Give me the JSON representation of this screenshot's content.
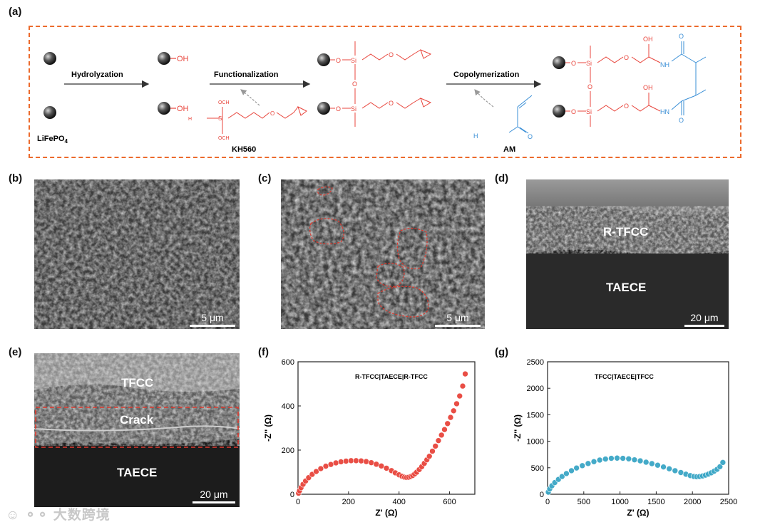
{
  "panels": {
    "a": "(a)",
    "b": "(b)",
    "c": "(c)",
    "d": "(d)",
    "e": "(e)",
    "f": "(f)",
    "g": "(g)"
  },
  "scheme": {
    "lfp_label": "LiFePO",
    "lfp_sub": "4",
    "step1": "Hydrolyzation",
    "step2": "Functionalization",
    "step3": "Copolymerization",
    "oh": "OH",
    "kh560": "KH560",
    "am": "AM",
    "och3": "OCH",
    "h3co": "H",
    "nh2": "H",
    "si": "Si",
    "o": "O",
    "nh": "NH",
    "hn": "HN"
  },
  "sem": {
    "b_scale": "5 μm",
    "c_scale": "5 μm",
    "d_scale": "20 μm",
    "e_scale": "20 μm",
    "d_top": "R-TFCC",
    "d_bottom": "TAECE",
    "e_top": "TFCC",
    "e_mid": "Crack",
    "e_bottom": "TAECE"
  },
  "chart_data": [
    {
      "type": "scatter",
      "panel": "f",
      "legend": "R-TFCC|TAECE|R-TFCC",
      "xlabel": "Z' (Ω)",
      "ylabel": "-Z'' (Ω)",
      "xlim": [
        0,
        700
      ],
      "ylim": [
        0,
        600
      ],
      "xticks": [
        0,
        200,
        400,
        600
      ],
      "yticks": [
        0,
        200,
        400,
        600
      ],
      "color": "#e8453c",
      "x": [
        2,
        6,
        12,
        20,
        30,
        42,
        56,
        72,
        90,
        110,
        130,
        150,
        170,
        190,
        210,
        230,
        250,
        270,
        290,
        310,
        330,
        350,
        370,
        385,
        400,
        412,
        422,
        430,
        438,
        446,
        454,
        462,
        470,
        480,
        490,
        500,
        510,
        520,
        532,
        544,
        556,
        568,
        580,
        592,
        604,
        616,
        628,
        640,
        652,
        662
      ],
      "y": [
        5,
        16,
        30,
        45,
        60,
        75,
        90,
        103,
        116,
        127,
        135,
        142,
        147,
        150,
        152,
        152,
        151,
        148,
        143,
        136,
        128,
        118,
        107,
        97,
        88,
        81,
        77,
        76,
        77,
        80,
        85,
        92,
        100,
        112,
        125,
        140,
        156,
        172,
        195,
        218,
        243,
        268,
        293,
        320,
        348,
        378,
        410,
        445,
        490,
        545
      ]
    },
    {
      "type": "scatter",
      "panel": "g",
      "legend": "TFCC|TAECE|TFCC",
      "xlabel": "Z' (Ω)",
      "ylabel": "-Z'' (Ω)",
      "xlim": [
        0,
        2500
      ],
      "ylim": [
        0,
        2500
      ],
      "xticks": [
        0,
        500,
        1000,
        1500,
        2000,
        2500
      ],
      "yticks": [
        0,
        500,
        1000,
        1500,
        2000,
        2500
      ],
      "color": "#3aa6c6",
      "x": [
        10,
        30,
        60,
        100,
        150,
        200,
        260,
        330,
        400,
        480,
        560,
        640,
        720,
        800,
        880,
        960,
        1040,
        1120,
        1200,
        1280,
        1360,
        1440,
        1520,
        1600,
        1680,
        1760,
        1840,
        1910,
        1970,
        2020,
        2060,
        2100,
        2140,
        2180,
        2220,
        2260,
        2300,
        2340,
        2380,
        2420
      ],
      "y": [
        40,
        100,
        160,
        220,
        280,
        335,
        390,
        445,
        495,
        540,
        580,
        615,
        645,
        665,
        678,
        682,
        678,
        668,
        650,
        630,
        605,
        578,
        548,
        515,
        480,
        445,
        410,
        378,
        352,
        335,
        330,
        335,
        345,
        360,
        380,
        405,
        435,
        470,
        520,
        600
      ]
    }
  ]
}
